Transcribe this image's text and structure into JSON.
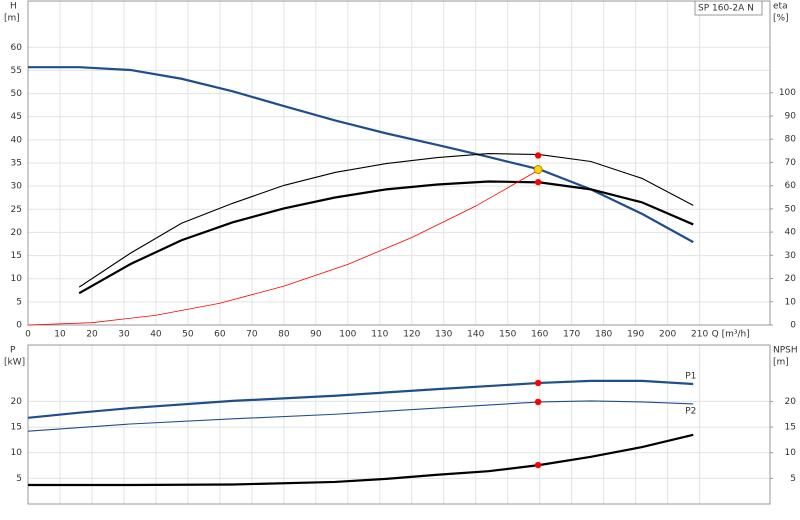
{
  "chart_data": [
    {
      "type": "line",
      "title": "SP 160-2A N",
      "ylabel": "H",
      "yunit": "[m]",
      "y2label": "eta",
      "y2unit": "[%]",
      "xlabel": "Q [m³/h]",
      "xlim": [
        0,
        232
      ],
      "ylim": [
        0,
        70
      ],
      "y2lim": [
        0,
        139.5
      ],
      "grid": true,
      "xtick_labels": true,
      "xticks": [
        0,
        10,
        20,
        30,
        40,
        50,
        60,
        70,
        80,
        90,
        100,
        110,
        120,
        130,
        140,
        150,
        160,
        170,
        180,
        190,
        200,
        210
      ],
      "yticks": [
        0,
        5,
        10,
        15,
        20,
        25,
        30,
        35,
        40,
        45,
        50,
        55,
        60
      ],
      "y2ticks": [
        0,
        10,
        20,
        30,
        40,
        50,
        60,
        70,
        80,
        90,
        100
      ],
      "series": [
        {
          "color": "#1f4e8c",
          "style": "thick",
          "axis": "y",
          "x": [
            0,
            16,
            32,
            48,
            64,
            80,
            96,
            112,
            128,
            144,
            160,
            176,
            192,
            208
          ],
          "values": [
            55.7,
            55.7,
            55.1,
            53.2,
            50.5,
            47.3,
            44.2,
            41.4,
            38.9,
            36.3,
            33.6,
            29.3,
            24,
            17.9
          ]
        },
        {
          "color": "#000000",
          "style": "thin",
          "axis": "y2",
          "x": [
            16,
            32,
            48,
            64,
            80,
            96,
            112,
            128,
            144,
            160,
            176,
            192,
            208
          ],
          "values": [
            16.3,
            30.9,
            43.8,
            52.4,
            60.1,
            65.7,
            69.5,
            72.1,
            73.8,
            73.4,
            70.4,
            63.1,
            51.5
          ]
        },
        {
          "color": "#000000",
          "style": "thick",
          "axis": "y2",
          "x": [
            16,
            32,
            48,
            64,
            80,
            96,
            112,
            128,
            144,
            160,
            176,
            192,
            208
          ],
          "values": [
            13.7,
            26.2,
            36.5,
            44.2,
            50.2,
            54.9,
            58.4,
            60.5,
            61.8,
            61.4,
            58.4,
            52.8,
            43.3
          ]
        },
        {
          "color": "#ff0000",
          "style": "hair",
          "axis": "y",
          "x": [
            0,
            20,
            40,
            60,
            80,
            100,
            120,
            140,
            159.5
          ],
          "values": [
            0,
            0.5,
            2.1,
            4.7,
            8.4,
            13.1,
            18.9,
            25.7,
            33.4
          ]
        }
      ],
      "points": [
        {
          "x": 159.5,
          "y": 73,
          "axis": "y2",
          "color": "#ff0000"
        },
        {
          "x": 159.5,
          "y": 61.5,
          "axis": "y2",
          "color": "#ff0000"
        },
        {
          "x": 159.5,
          "y": 33.6,
          "axis": "y",
          "color": "#ffd700"
        }
      ]
    },
    {
      "type": "line",
      "ylabel": "P",
      "yunit": "[kW]",
      "y2label": "NPSH",
      "y2unit": "[m]",
      "xlim": [
        0,
        232
      ],
      "ylim": [
        0,
        31
      ],
      "y2lim": [
        0,
        31
      ],
      "grid": true,
      "xtick_labels": false,
      "xticks": [
        0,
        10,
        20,
        30,
        40,
        50,
        60,
        70,
        80,
        90,
        100,
        110,
        120,
        130,
        140,
        150,
        160,
        170,
        180,
        190,
        200,
        210
      ],
      "yticks": [
        5,
        10,
        15,
        20
      ],
      "y2ticks": [
        5,
        10,
        15,
        20
      ],
      "series": [
        {
          "name": "P1",
          "color": "#1f4e8c",
          "style": "thick",
          "axis": "y",
          "x": [
            0,
            16,
            32,
            64,
            96,
            128,
            160,
            176,
            192,
            208
          ],
          "values": [
            16.8,
            17.8,
            18.7,
            20.1,
            21.1,
            22.4,
            23.6,
            24,
            24,
            23.4
          ]
        },
        {
          "name": "P2",
          "color": "#1f4e8c",
          "style": "thin",
          "axis": "y",
          "x": [
            0,
            32,
            64,
            96,
            128,
            160,
            176,
            192,
            208
          ],
          "values": [
            14.2,
            15.6,
            16.6,
            17.5,
            18.7,
            19.9,
            20.1,
            19.9,
            19.5
          ]
        },
        {
          "color": "#000000",
          "style": "thick",
          "axis": "y2",
          "x": [
            0,
            32,
            64,
            96,
            112,
            128,
            144,
            160,
            176,
            192,
            208
          ],
          "values": [
            3.7,
            3.7,
            3.8,
            4.3,
            4.9,
            5.7,
            6.4,
            7.6,
            9.2,
            11.1,
            13.5
          ]
        }
      ],
      "points": [
        {
          "x": 159.5,
          "y": 23.6,
          "axis": "y",
          "color": "#ff0000"
        },
        {
          "x": 159.5,
          "y": 19.9,
          "axis": "y",
          "color": "#ff0000"
        },
        {
          "x": 159.5,
          "y": 7.6,
          "axis": "y2",
          "color": "#ff0000"
        }
      ]
    }
  ]
}
